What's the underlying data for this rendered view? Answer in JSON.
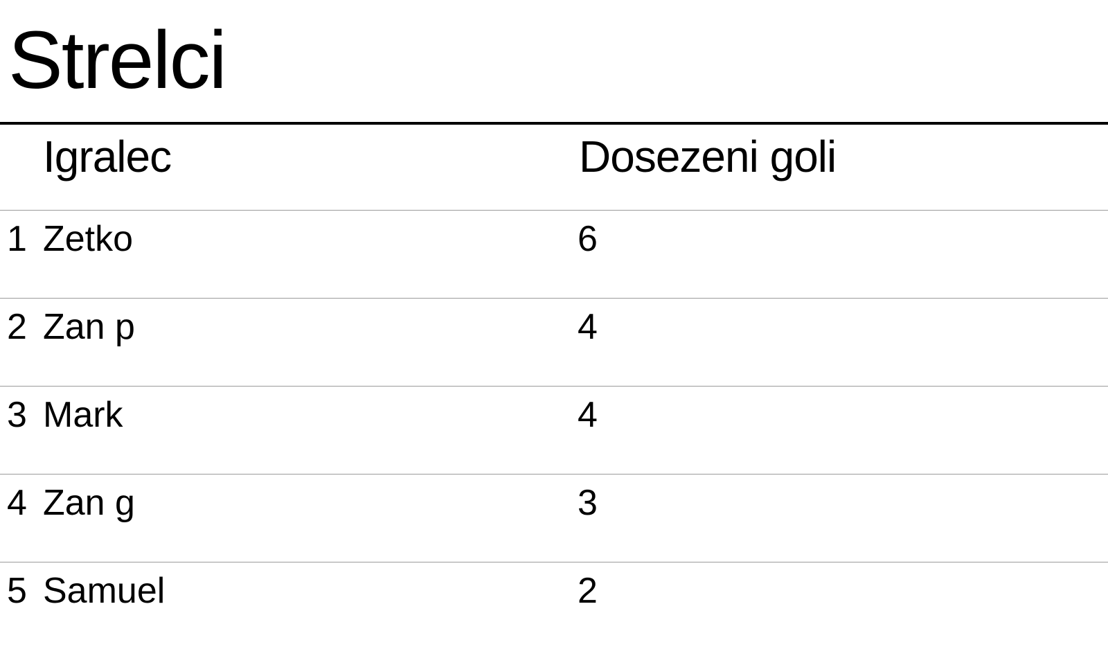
{
  "page": {
    "title": "Strelci"
  },
  "table": {
    "columns": {
      "player": "Igralec",
      "goals": "Dosezeni goli"
    },
    "rows": [
      {
        "rank": "1",
        "name": "Zetko",
        "goals": "6"
      },
      {
        "rank": "2",
        "name": "Zan p",
        "goals": "4"
      },
      {
        "rank": "3",
        "name": "Mark",
        "goals": "4"
      },
      {
        "rank": "4",
        "name": "Zan g",
        "goals": "3"
      },
      {
        "rank": "5",
        "name": "Samuel",
        "goals": "2"
      }
    ]
  }
}
